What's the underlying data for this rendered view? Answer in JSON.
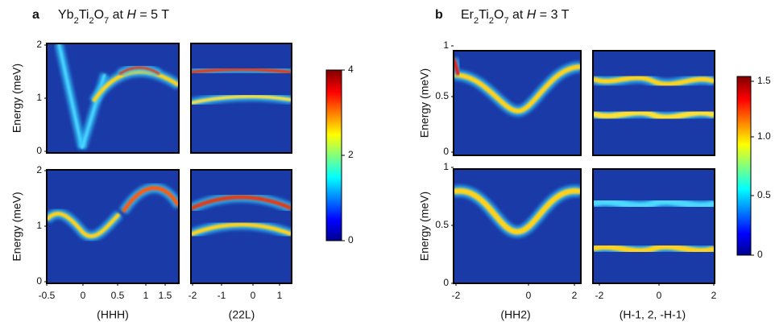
{
  "panels": [
    {
      "label": "a",
      "title": [
        {
          "text": "Yb"
        },
        {
          "text": "2",
          "sub": true
        },
        {
          "text": "Ti"
        },
        {
          "text": "2",
          "sub": true
        },
        {
          "text": "O"
        },
        {
          "text": "7",
          "sub": true
        },
        {
          "text": " at "
        },
        {
          "text": "H",
          "italic": true
        },
        {
          "text": " = 5 T"
        }
      ],
      "y_label_top": "Energy (meV)",
      "y_label_bottom": "Energy (meV)",
      "yticks_top": [
        "2",
        "1",
        "0"
      ],
      "yticks_bottom": [
        "2",
        "1",
        "0"
      ],
      "xticks_left": [
        "-0.5",
        "0",
        "0.5",
        "1",
        "1.5"
      ],
      "xticks_right": [
        "-2",
        "-1",
        "0",
        "1"
      ],
      "xlabel_left": "(HHH)",
      "xlabel_right": "(22L)",
      "colorbar_ticks": [
        "4",
        "2",
        "0"
      ]
    },
    {
      "label": "b",
      "title": [
        {
          "text": "Er"
        },
        {
          "text": "2",
          "sub": true
        },
        {
          "text": "Ti"
        },
        {
          "text": "2",
          "sub": true
        },
        {
          "text": "O"
        },
        {
          "text": "7",
          "sub": true
        },
        {
          "text": " at "
        },
        {
          "text": "H",
          "italic": true
        },
        {
          "text": " = 3 T"
        }
      ],
      "y_label_top": "Energy (meV)",
      "y_label_bottom": "Energy (meV)",
      "yticks_top": [
        "1",
        "0.5",
        "0"
      ],
      "yticks_bottom": [
        "1",
        "0.5",
        "0"
      ],
      "xticks_left": [
        "-2",
        "0",
        "2"
      ],
      "xticks_right": [
        "-2",
        "0",
        "2"
      ],
      "xlabel_left": "(HH2)",
      "xlabel_right": "(H-1, 2, -H-1)",
      "colorbar_ticks": [
        "1.5",
        "1.0",
        "0.5",
        "0"
      ]
    }
  ]
}
